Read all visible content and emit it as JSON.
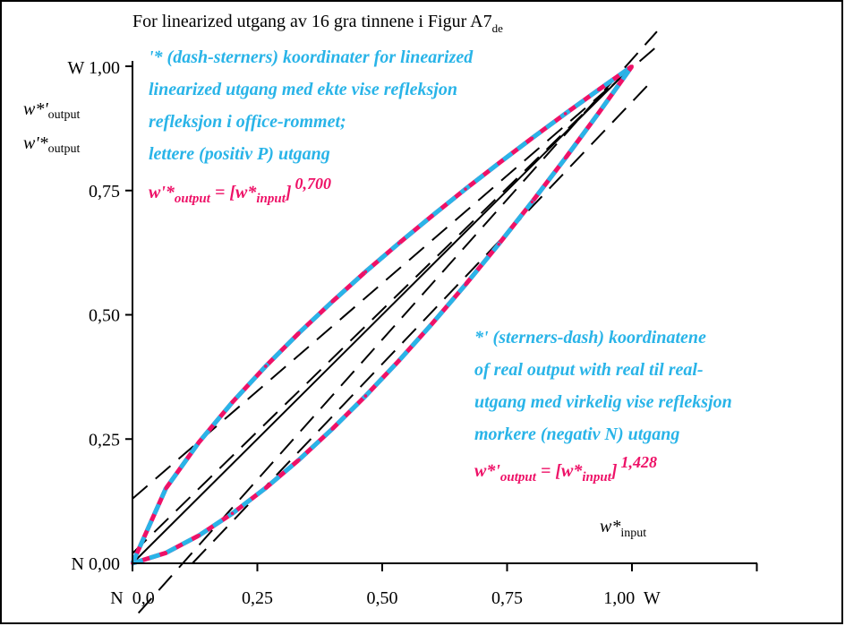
{
  "chart_data": {
    "type": "line",
    "title": "For linearized utgang av 16 gra tinnene i Figur A7",
    "title_sub": "de",
    "y_axis_top_label": "W 1,00",
    "y_axis_bottom_label": "N 0,00",
    "y_ticks": [
      "0,25",
      "0,50",
      "0,75"
    ],
    "y_tick_values": [
      0.25,
      0.5,
      0.75
    ],
    "x_ticks": [
      "N  0,0",
      "0,25",
      "0,50",
      "0,75",
      "1,00  W"
    ],
    "x_tick_values": [
      0,
      0.25,
      0.5,
      0.75,
      1.0
    ],
    "xlim": [
      0,
      1.25
    ],
    "ylim": [
      0,
      1.0
    ],
    "ylabel_1": {
      "main": "w*'",
      "sub": "output"
    },
    "ylabel_2": {
      "main": "w'*",
      "sub": "output"
    },
    "xlabel": {
      "main": "w*",
      "sub": "input"
    },
    "annotation_top": {
      "lines": [
        "'* (dash-sterners) koordinater for linearized",
        "linearized utgang med ekte vise refleksjon",
        "refleksjon i office-rommet;",
        "lettere (positiv P) utgang"
      ],
      "formula": {
        "lhs": "w'*",
        "lhs_sub": "output",
        "eq": " = [w*",
        "rhs_sub": "input",
        "close": "]",
        "exponent": "0,700"
      }
    },
    "annotation_bottom": {
      "lines": [
        "*' (sterners-dash) koordinatene",
        "of real output with real til real-",
        "utgang med virkelig vise refleksjon",
        "morkere (negativ N) utgang"
      ],
      "formula": {
        "lhs": "w*'",
        "lhs_sub": "output",
        "eq": " = [w*",
        "rhs_sub": "input",
        "close": "]",
        "exponent": "1,428"
      }
    },
    "series": [
      {
        "name": "",
        "exponent": 0.7,
        "x": [
          0,
          0.0667,
          0.1333,
          0.2,
          0.2667,
          0.3333,
          0.4,
          0.4667,
          0.5333,
          0.6,
          0.6667,
          0.7333,
          0.8,
          0.8667,
          0.9333,
          1.0
        ]
      },
      {
        "name": "",
        "exponent": 1.428,
        "x": [
          0,
          0.0667,
          0.1333,
          0.2,
          0.2667,
          0.3333,
          0.4,
          0.4667,
          0.5333,
          0.6,
          0.6667,
          0.7333,
          0.8,
          0.8667,
          0.9333,
          1.0
        ]
      }
    ],
    "reference_lines": [
      {
        "kind": "solid",
        "from": [
          0,
          0
        ],
        "to": [
          1,
          1
        ]
      },
      {
        "kind": "dashed",
        "from": [
          0,
          0.13
        ],
        "to": [
          1.05,
          1.04
        ]
      },
      {
        "kind": "dashed",
        "from": [
          0,
          0.02
        ],
        "to": [
          1.0,
          1.0
        ]
      },
      {
        "kind": "dashed",
        "from": [
          0.012,
          -0.1
        ],
        "to": [
          1.05,
          1.07
        ]
      },
      {
        "kind": "dashed",
        "from": [
          0.12,
          0
        ],
        "to": [
          1.03,
          0.96
        ]
      }
    ],
    "colors": {
      "dash_a": "#ee1167",
      "dash_b": "#29b4e8",
      "axes": "#000000"
    }
  }
}
